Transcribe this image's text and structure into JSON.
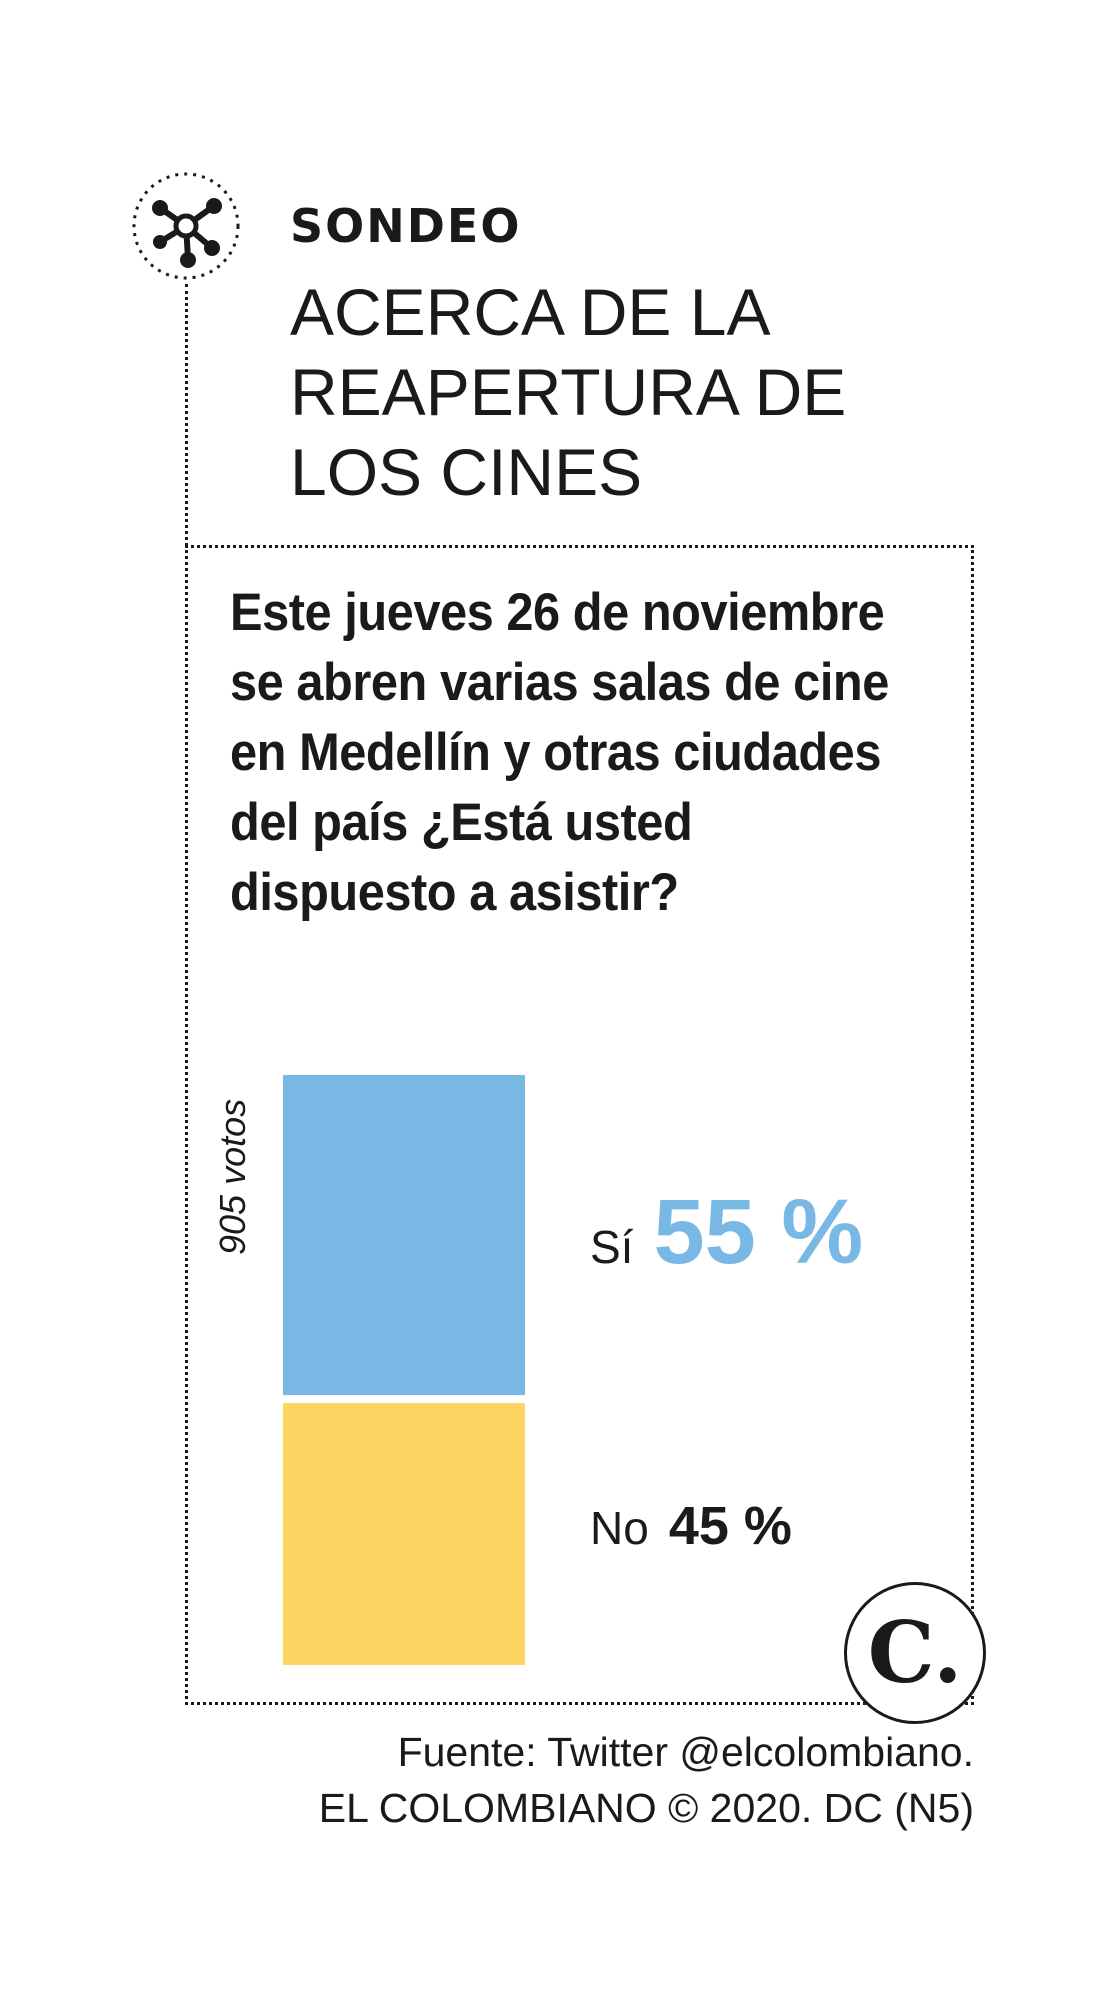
{
  "header": {
    "kicker": "SONDEO",
    "title": "ACERCA DE LA REAPERTURA DE LOS CINES"
  },
  "question": "Este jueves 26 de noviembre se abren varias salas de cine en Medellín y otras ciudades del país ¿Está usted dispuesto a asistir?",
  "votes_label": "905 votos",
  "icon": "network-node-icon",
  "logo": {
    "text": "C."
  },
  "chart_data": {
    "type": "bar",
    "stacked": true,
    "orientation": "vertical",
    "categories": [
      "Sí",
      "No"
    ],
    "values": [
      55,
      45
    ],
    "value_labels": [
      "55 %",
      "45 %"
    ],
    "colors": [
      "#79b7e4",
      "#fdd563"
    ],
    "unit": "%",
    "total": 100,
    "title": "ACERCA DE LA REAPERTURA DE LOS CINES",
    "xlabel": "",
    "ylabel": "",
    "grid": false
  },
  "footer": {
    "source": "Fuente: Twitter @elcolombiano.",
    "credit": "EL COLOMBIANO © 2020. DC (N5)"
  },
  "colors": {
    "accent_blue": "#79b7e4",
    "accent_yellow": "#fdd563",
    "text": "#1a1a1a"
  }
}
